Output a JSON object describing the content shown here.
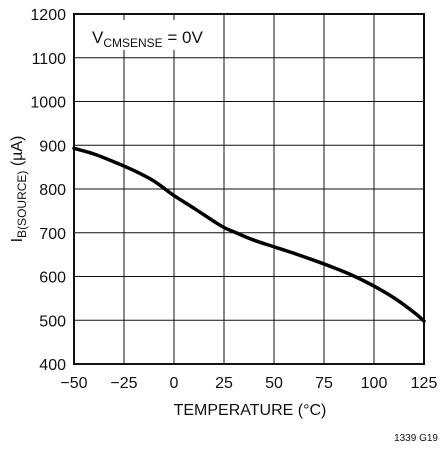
{
  "chart_data": {
    "type": "line",
    "annotation": {
      "main": "V",
      "sub": "CMSENSE",
      "rest": " = 0V"
    },
    "xlabel": "TEMPERATURE (°C)",
    "ylabel": {
      "main": "I",
      "sub": "B(SOURCE)",
      "rest": "  (µA)"
    },
    "xlim": [
      -50,
      125
    ],
    "ylim": [
      400,
      1200
    ],
    "x_ticks": [
      -50,
      -25,
      0,
      25,
      50,
      75,
      100,
      125
    ],
    "x_tick_labels": [
      "−50",
      "−25",
      "0",
      "25",
      "50",
      "75",
      "100",
      "125"
    ],
    "y_ticks": [
      400,
      500,
      600,
      700,
      800,
      900,
      1000,
      1100,
      1200
    ],
    "y_tick_labels": [
      "400",
      "500",
      "600",
      "700",
      "800",
      "900",
      "1000",
      "1100",
      "1200"
    ],
    "grid": true,
    "series": [
      {
        "x": [
          -50,
          -40,
          -30,
          -20,
          -10,
          0,
          10,
          20,
          25,
          30,
          40,
          50,
          60,
          70,
          80,
          90,
          100,
          110,
          120,
          125
        ],
        "y": [
          893,
          880,
          862,
          842,
          818,
          785,
          756,
          726,
          712,
          702,
          683,
          668,
          653,
          637,
          620,
          601,
          578,
          551,
          518,
          498
        ]
      }
    ]
  },
  "figure_id": "1339 G19"
}
